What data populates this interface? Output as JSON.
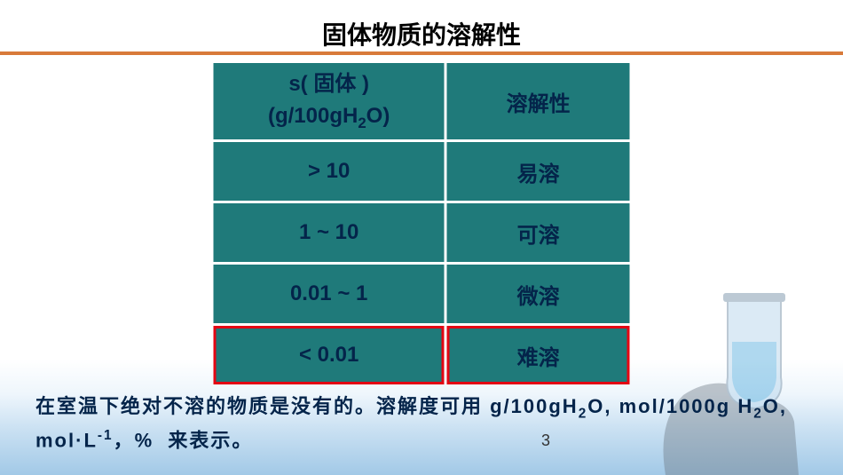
{
  "slide": {
    "title": "固体物质的溶解性",
    "accent_color": "#d87a3a",
    "table": {
      "bg_color": "#1f7a7a",
      "text_color": "#04244a",
      "highlight_border": "#e30613",
      "header": {
        "col1_html": "s( 固体 )<br>(g/100gH<sub>2</sub>O)",
        "col2": "溶解性"
      },
      "rows": [
        {
          "range": "> 10",
          "label": "易溶",
          "highlight": false
        },
        {
          "range": "1 ~ 10",
          "label": "可溶",
          "highlight": false
        },
        {
          "range": "0.01 ~ 1",
          "label": "微溶",
          "highlight": false
        },
        {
          "range": "< 0.01",
          "label": "难溶",
          "highlight": true
        }
      ]
    },
    "footer_html": "在室温下绝对不溶的物质是没有的。溶解度可用 g/100gH<sub>2</sub>O, mol/1000g H<sub>2</sub>O, mol·L<sup>-1</sup>，% &nbsp;来表示。",
    "page_number": "3"
  }
}
